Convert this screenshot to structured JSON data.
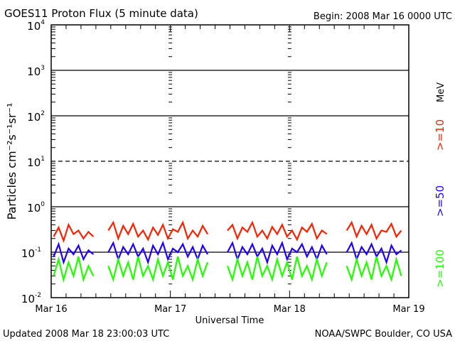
{
  "chart_data": {
    "type": "line",
    "title": "GOES11 Proton Flux (5 minute data)",
    "begin_label": "Begin: 2008 Mar 16 0000 UTC",
    "xlabel": "Universal Time",
    "ylabel": "Particles cm⁻²s⁻¹sr⁻¹",
    "yscale": "log",
    "ylim": [
      0.01,
      10000
    ],
    "y_ticks": [
      {
        "value": 0.01,
        "base": "10",
        "exp": "-2"
      },
      {
        "value": 0.1,
        "base": "10",
        "exp": "-1"
      },
      {
        "value": 1,
        "base": "10",
        "exp": "0"
      },
      {
        "value": 10,
        "base": "10",
        "exp": "1"
      },
      {
        "value": 100,
        "base": "10",
        "exp": "2"
      },
      {
        "value": 1000,
        "base": "10",
        "exp": "3"
      },
      {
        "value": 10000,
        "base": "10",
        "exp": "4"
      }
    ],
    "x_unit": "hours since 2008 Mar 16 00:00 UTC",
    "xlim": [
      0,
      72
    ],
    "x_ticks": [
      {
        "value": 0,
        "label": "Mar 16"
      },
      {
        "value": 24,
        "label": "Mar 17"
      },
      {
        "value": 48,
        "label": "Mar 18"
      },
      {
        "value": 72,
        "label": "Mar 19"
      }
    ],
    "reference_lines": [
      {
        "value": 1000,
        "style": "solid"
      },
      {
        "value": 100,
        "style": "solid"
      },
      {
        "value": 10,
        "style": "dashed"
      },
      {
        "value": 1,
        "style": "solid"
      },
      {
        "value": 0.1,
        "style": "solid"
      }
    ],
    "unit_label": "MeV",
    "series": [
      {
        "name": ">=10",
        "color": "#ff2000",
        "values": [
          0.22,
          0.35,
          0.18,
          0.4,
          0.25,
          0.3,
          0.2,
          0.28,
          0.22,
          null,
          null,
          0.3,
          0.45,
          0.2,
          0.38,
          0.25,
          0.42,
          0.22,
          0.3,
          0.19,
          0.35,
          0.24,
          0.4,
          0.2,
          0.32,
          0.28,
          0.45,
          0.2,
          0.3,
          0.22,
          0.38,
          0.25,
          null,
          null,
          null,
          0.3,
          0.4,
          0.2,
          0.35,
          0.28,
          0.45,
          0.22,
          0.3,
          0.2,
          0.36,
          0.25,
          0.4,
          0.22,
          0.3,
          0.19,
          0.35,
          0.28,
          0.42,
          0.2,
          0.3,
          0.25,
          null,
          null,
          null,
          0.3,
          0.45,
          0.22,
          0.38,
          0.25,
          0.4,
          0.2,
          0.3,
          0.28,
          0.42,
          0.22,
          0.3,
          null
        ]
      },
      {
        "name": ">=50",
        "color": "#2000ff",
        "values": [
          0.08,
          0.15,
          0.06,
          0.12,
          0.09,
          0.14,
          0.07,
          0.11,
          0.09,
          null,
          null,
          0.1,
          0.16,
          0.07,
          0.13,
          0.09,
          0.15,
          0.08,
          0.12,
          0.06,
          0.14,
          0.09,
          0.16,
          0.07,
          0.12,
          0.1,
          0.15,
          0.08,
          0.13,
          0.07,
          0.14,
          0.09,
          null,
          null,
          null,
          0.1,
          0.16,
          0.07,
          0.13,
          0.09,
          0.15,
          0.08,
          0.12,
          0.06,
          0.14,
          0.09,
          0.16,
          0.07,
          0.12,
          0.1,
          0.15,
          0.08,
          0.13,
          0.07,
          0.14,
          0.09,
          null,
          null,
          null,
          0.1,
          0.16,
          0.07,
          0.13,
          0.09,
          0.15,
          0.08,
          0.12,
          0.06,
          0.14,
          0.09,
          0.11,
          null
        ]
      },
      {
        "name": ">=100",
        "color": "#20ff00",
        "values": [
          0.03,
          0.07,
          0.025,
          0.06,
          0.03,
          0.08,
          0.025,
          0.05,
          0.03,
          null,
          null,
          0.05,
          0.025,
          0.07,
          0.03,
          0.06,
          0.025,
          0.08,
          0.03,
          0.05,
          0.025,
          0.07,
          0.03,
          0.06,
          0.025,
          0.08,
          0.03,
          0.05,
          0.025,
          0.07,
          0.03,
          0.06,
          null,
          null,
          null,
          0.05,
          0.025,
          0.07,
          0.03,
          0.06,
          0.025,
          0.08,
          0.03,
          0.05,
          0.025,
          0.07,
          0.03,
          0.06,
          0.025,
          0.08,
          0.03,
          0.05,
          0.025,
          0.07,
          0.03,
          0.06,
          null,
          null,
          null,
          0.05,
          0.025,
          0.07,
          0.03,
          0.06,
          0.025,
          0.08,
          0.03,
          0.05,
          0.025,
          0.07,
          0.03,
          null
        ]
      }
    ]
  },
  "footer": {
    "updated": "Updated 2008 Mar 18 23:00:03 UTC",
    "credit": "NOAA/SWPC Boulder, CO USA"
  }
}
